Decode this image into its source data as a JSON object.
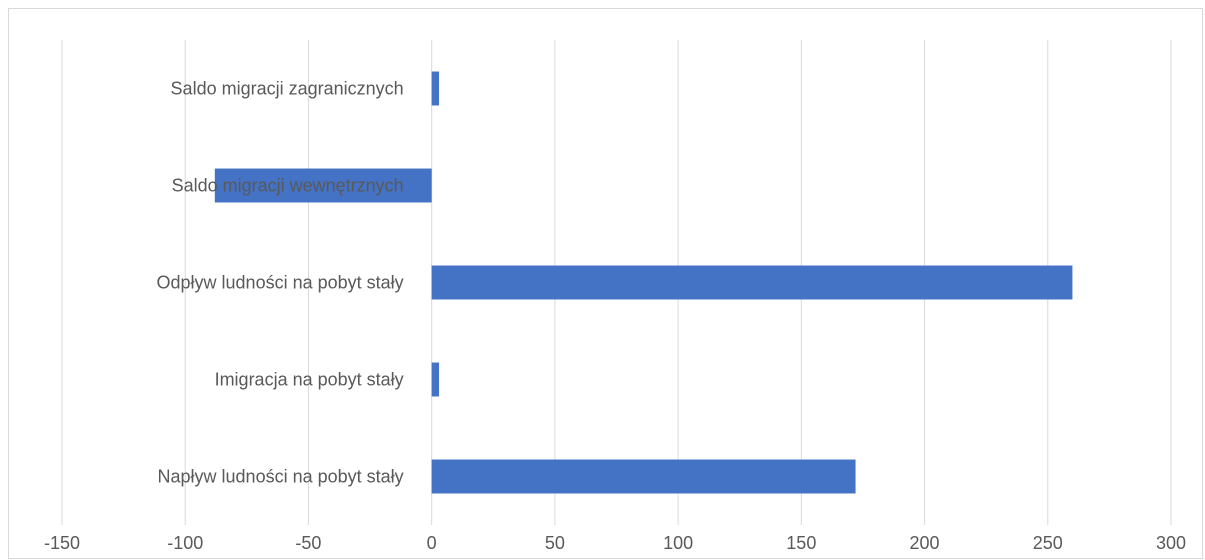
{
  "chart_data": {
    "type": "bar",
    "orientation": "horizontal",
    "title": "",
    "xlabel": "",
    "ylabel": "",
    "categories": [
      "Napływ ludności na pobyt stały",
      "Imigracja na pobyt stały",
      "Odpływ ludności na pobyt stały",
      "Saldo migracji wewnętrznych",
      "Saldo migracji zagranicznych"
    ],
    "values": [
      172,
      3,
      260,
      -88,
      3
    ],
    "xlim": [
      -150,
      300
    ],
    "xticks": [
      -150,
      -100,
      -50,
      0,
      50,
      100,
      150,
      200,
      250,
      300
    ],
    "grid": true,
    "legend": "none",
    "bar_color": "#4472c4"
  }
}
